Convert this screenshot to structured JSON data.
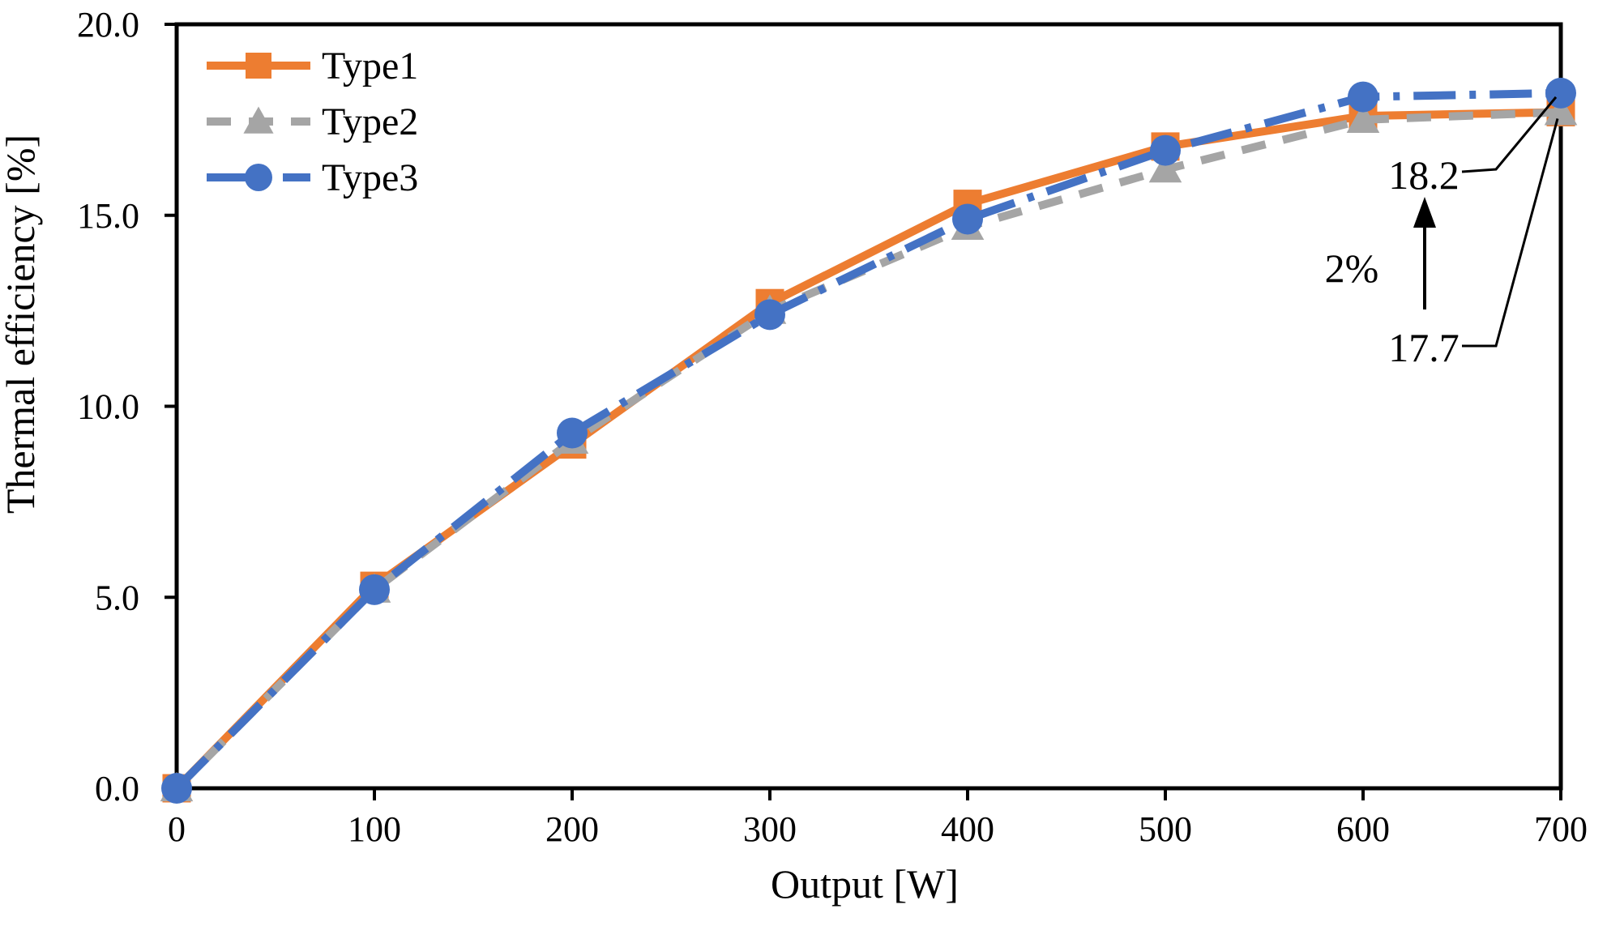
{
  "chart_data": {
    "type": "line",
    "title": "",
    "xlabel": "Output [W]",
    "ylabel": "Thermal efficiency [%]",
    "x": [
      0,
      100,
      200,
      300,
      400,
      500,
      600,
      700
    ],
    "series": [
      {
        "name": "Type1",
        "color": "#ED7D31",
        "line_style": "solid",
        "marker": "square",
        "values": [
          0.0,
          5.3,
          9.0,
          12.7,
          15.3,
          16.8,
          17.6,
          17.7
        ]
      },
      {
        "name": "Type2",
        "color": "#A5A5A5",
        "line_style": "dashed",
        "marker": "triangle",
        "values": [
          0.0,
          5.2,
          9.1,
          12.5,
          14.7,
          16.2,
          17.5,
          17.7
        ]
      },
      {
        "name": "Type3",
        "color": "#4472C4",
        "line_style": "dash-dot",
        "marker": "circle",
        "values": [
          0.0,
          5.2,
          9.3,
          12.4,
          14.9,
          16.7,
          18.1,
          18.2
        ]
      }
    ],
    "xlim": [
      0,
      700
    ],
    "ylim": [
      0,
      20
    ],
    "x_ticks": [
      0,
      100,
      200,
      300,
      400,
      500,
      600,
      700
    ],
    "y_ticks": [
      0,
      5,
      10,
      15,
      20
    ],
    "y_tick_decimals": 1,
    "grid": false,
    "legend_position": "top-left-inside",
    "axis_color": "#000000",
    "background_color": "#ffffff",
    "annotations": [
      {
        "text": "18.2",
        "points_to_series": "Type3",
        "points_to_x": 700
      },
      {
        "text": "17.7",
        "points_to_series": "Type1",
        "points_to_x": 700
      },
      {
        "text": "2%",
        "kind": "difference-arrow-up"
      }
    ]
  }
}
